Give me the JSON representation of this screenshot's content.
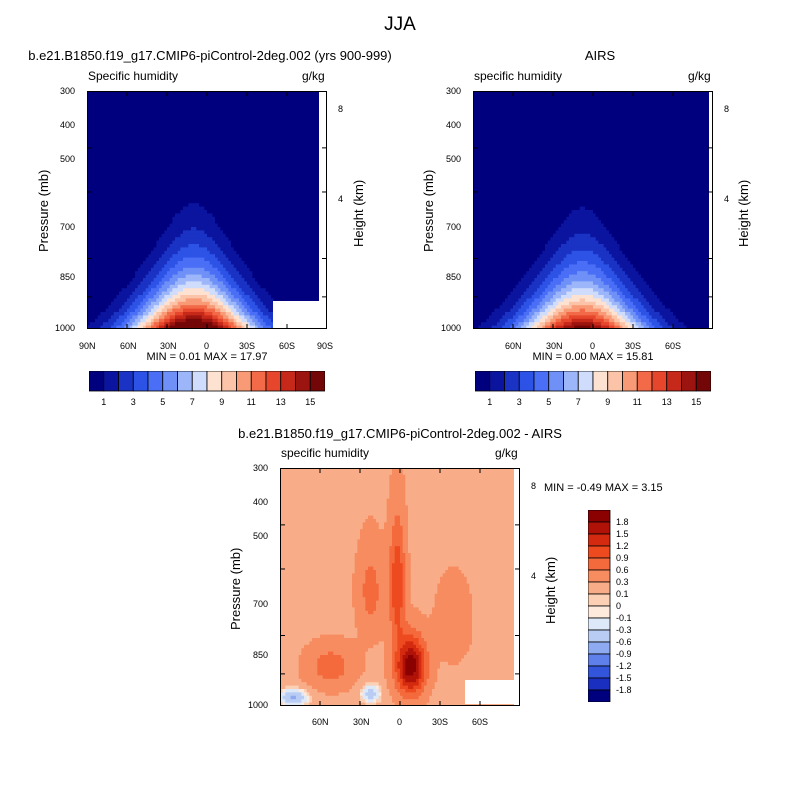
{
  "figure": {
    "title": "JJA"
  },
  "panels": [
    {
      "title": "b.e21.B1850.f19_g17.CMIP6-piControl-2deg.002 (yrs 900-999)",
      "variable": "Specific humidity",
      "units": "g/kg",
      "minmax": "MIN =  0.01  MAX =  17.97",
      "ylabel": "Pressure (mb)",
      "y2label": "Height (km)",
      "yticks": [
        "300",
        "400",
        "500",
        "700",
        "850",
        "1000"
      ],
      "y2ticks": [
        "8",
        "4"
      ],
      "xticks": [
        "90N",
        "60N",
        "30N",
        "0",
        "30S",
        "60S",
        "90S"
      ]
    },
    {
      "title": "AIRS",
      "variable": "specific humidity",
      "units": "g/kg",
      "minmax": "MIN =  0.00  MAX =  15.81",
      "ylabel": "Pressure (mb)",
      "y2label": "Height (km)",
      "yticks": [
        "300",
        "400",
        "500",
        "700",
        "850",
        "1000"
      ],
      "y2ticks": [
        "8",
        "4"
      ],
      "xticks": [
        "60N",
        "30N",
        "0",
        "30S",
        "60S"
      ]
    },
    {
      "title": "b.e21.B1850.f19_g17.CMIP6-piControl-2deg.002 - AIRS",
      "variable": "specific humidity",
      "units": "g/kg",
      "minmax": "MIN = -0.49  MAX =  3.15",
      "ylabel": "Pressure (mb)",
      "y2label": "Height (km)",
      "yticks": [
        "300",
        "400",
        "500",
        "700",
        "850",
        "1000"
      ],
      "y2ticks": [
        "8",
        "4"
      ],
      "xticks": [
        "60N",
        "30N",
        "0",
        "30S",
        "60S"
      ]
    }
  ],
  "colorbar_top": {
    "labels": [
      "1",
      "3",
      "5",
      "7",
      "9",
      "11",
      "13",
      "15"
    ],
    "colors": [
      "#00007f",
      "#0a149e",
      "#1a33c4",
      "#2d52e6",
      "#4a6ef5",
      "#6f91f7",
      "#9cb6f9",
      "#cfdcfb",
      "#fde2d2",
      "#fbc4a8",
      "#f89a76",
      "#f26a48",
      "#e5462c",
      "#c6291a",
      "#9c140f",
      "#730606"
    ]
  },
  "colorbar_diff": {
    "labels": [
      "1.8",
      "1.5",
      "1.2",
      "0.9",
      "0.6",
      "0.3",
      "0.1",
      "0",
      "-0.1",
      "-0.3",
      "-0.6",
      "-0.9",
      "-1.2",
      "-1.5",
      "-1.8"
    ],
    "colors": [
      "#8b0000",
      "#b01208",
      "#d42a10",
      "#ee4a20",
      "#f46a3c",
      "#f68c60",
      "#f8ad88",
      "#fbd0b4",
      "#fdeadc",
      "#dde8f8",
      "#b8ccf4",
      "#8eaaf0",
      "#5f80ea",
      "#3355dc",
      "#1a2fc0",
      "#00007f"
    ]
  },
  "chart_data": [
    {
      "type": "heatmap",
      "title": "b.e21.B1850.f19_g17.CMIP6-piControl-2deg.002 (yrs 900-999)",
      "variable": "Specific humidity",
      "units": "g/kg",
      "xlabel": "",
      "ylabel": "Pressure (mb)",
      "y2label": "Height (km)",
      "x_ticks": [
        "90N",
        "60N",
        "30N",
        "0",
        "30S",
        "60S",
        "90S"
      ],
      "x_range": [
        90,
        -90
      ],
      "y_ticks": [
        300,
        400,
        500,
        700,
        850,
        1000
      ],
      "y_range": [
        1000,
        300
      ],
      "y_scale": "log",
      "levels": [
        1,
        2,
        3,
        4,
        5,
        6,
        7,
        8,
        9,
        10,
        11,
        12,
        13,
        14,
        15
      ],
      "min": 0.01,
      "max": 17.97,
      "peak": {
        "x": 10,
        "y": 1000,
        "value": 17.97
      },
      "grid": false
    },
    {
      "type": "heatmap",
      "title": "AIRS",
      "variable": "specific humidity",
      "units": "g/kg",
      "xlabel": "",
      "ylabel": "Pressure (mb)",
      "y2label": "Height (km)",
      "x_ticks": [
        "60N",
        "30N",
        "0",
        "30S",
        "60S"
      ],
      "x_range": [
        90,
        -90
      ],
      "y_ticks": [
        300,
        400,
        500,
        700,
        850,
        1000
      ],
      "y_range": [
        1000,
        300
      ],
      "y_scale": "log",
      "levels": [
        1,
        2,
        3,
        4,
        5,
        6,
        7,
        8,
        9,
        10,
        11,
        12,
        13,
        14,
        15
      ],
      "min": 0.0,
      "max": 15.81,
      "peak": {
        "x": 8,
        "y": 1000,
        "value": 15.81
      },
      "grid": false
    },
    {
      "type": "heatmap",
      "title": "b.e21.B1850.f19_g17.CMIP6-piControl-2deg.002 - AIRS",
      "variable": "specific humidity",
      "units": "g/kg",
      "xlabel": "",
      "ylabel": "Pressure (mb)",
      "y2label": "Height (km)",
      "x_ticks": [
        "60N",
        "30N",
        "0",
        "30S",
        "60S"
      ],
      "x_range": [
        90,
        -90
      ],
      "y_ticks": [
        300,
        400,
        500,
        700,
        850,
        1000
      ],
      "y_range": [
        1000,
        300
      ],
      "y_scale": "log",
      "levels": [
        -1.8,
        -1.5,
        -1.2,
        -0.9,
        -0.6,
        -0.3,
        -0.1,
        0,
        0.1,
        0.3,
        0.6,
        0.9,
        1.2,
        1.5,
        1.8
      ],
      "min": -0.49,
      "max": 3.15,
      "peak": {
        "x": -5,
        "y": 820,
        "value": 3.15
      },
      "grid": false
    }
  ]
}
